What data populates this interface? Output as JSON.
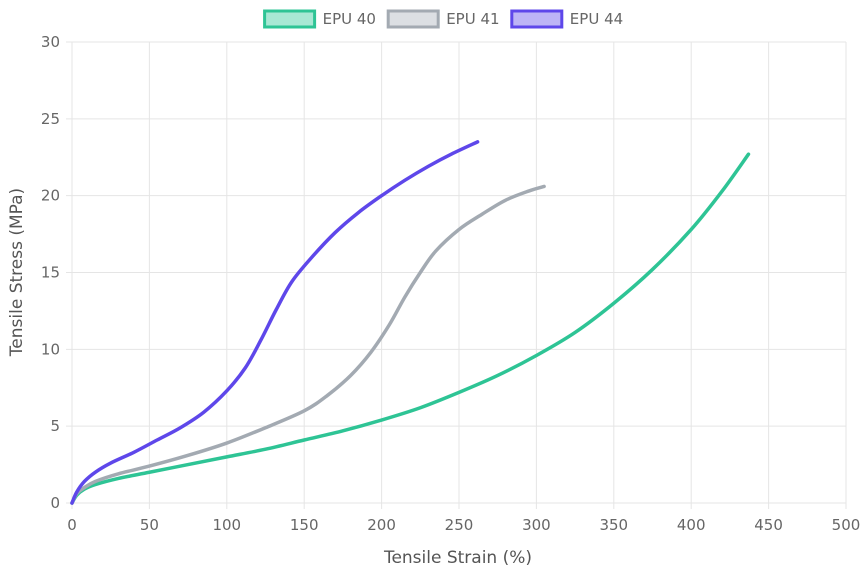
{
  "chart_data": {
    "type": "line",
    "xlabel": "Tensile Strain (%)",
    "ylabel": "Tensile Stress (MPa)",
    "xlim": [
      0,
      500
    ],
    "ylim": [
      0,
      30
    ],
    "x_ticks": [
      0,
      50,
      100,
      150,
      200,
      250,
      300,
      350,
      400,
      450,
      500
    ],
    "y_ticks": [
      0,
      5,
      10,
      15,
      20,
      25,
      30
    ],
    "grid": true,
    "legend_position": "top",
    "series": [
      {
        "name": "EPU 40",
        "color": "#2ec495",
        "fill": "#a8e8d4",
        "points": [
          [
            0,
            0
          ],
          [
            3,
            0.5
          ],
          [
            8,
            0.9
          ],
          [
            15,
            1.2
          ],
          [
            30,
            1.6
          ],
          [
            50,
            2.0
          ],
          [
            75,
            2.5
          ],
          [
            100,
            3.0
          ],
          [
            125,
            3.5
          ],
          [
            150,
            4.1
          ],
          [
            175,
            4.7
          ],
          [
            200,
            5.4
          ],
          [
            225,
            6.2
          ],
          [
            250,
            7.2
          ],
          [
            275,
            8.3
          ],
          [
            300,
            9.6
          ],
          [
            325,
            11.1
          ],
          [
            350,
            13.0
          ],
          [
            375,
            15.2
          ],
          [
            400,
            17.8
          ],
          [
            420,
            20.3
          ],
          [
            437,
            22.7
          ]
        ]
      },
      {
        "name": "EPU 41",
        "color": "#a3aab2",
        "fill": "#dcdfe3",
        "points": [
          [
            0,
            0
          ],
          [
            3,
            0.6
          ],
          [
            8,
            1.0
          ],
          [
            15,
            1.4
          ],
          [
            30,
            1.9
          ],
          [
            50,
            2.4
          ],
          [
            75,
            3.1
          ],
          [
            100,
            3.9
          ],
          [
            125,
            4.9
          ],
          [
            150,
            6.0
          ],
          [
            165,
            7.0
          ],
          [
            180,
            8.3
          ],
          [
            193,
            9.8
          ],
          [
            205,
            11.6
          ],
          [
            215,
            13.4
          ],
          [
            225,
            15.0
          ],
          [
            235,
            16.4
          ],
          [
            250,
            17.8
          ],
          [
            265,
            18.8
          ],
          [
            280,
            19.7
          ],
          [
            295,
            20.3
          ],
          [
            305,
            20.6
          ]
        ]
      },
      {
        "name": "EPU 44",
        "color": "#5e47ea",
        "fill": "#bdb4f6",
        "points": [
          [
            0,
            0
          ],
          [
            3,
            0.7
          ],
          [
            8,
            1.4
          ],
          [
            15,
            2.0
          ],
          [
            25,
            2.6
          ],
          [
            40,
            3.3
          ],
          [
            55,
            4.1
          ],
          [
            70,
            4.9
          ],
          [
            85,
            5.9
          ],
          [
            100,
            7.3
          ],
          [
            112,
            8.8
          ],
          [
            122,
            10.6
          ],
          [
            132,
            12.6
          ],
          [
            142,
            14.4
          ],
          [
            155,
            16.0
          ],
          [
            170,
            17.6
          ],
          [
            185,
            18.9
          ],
          [
            200,
            20.0
          ],
          [
            215,
            21.0
          ],
          [
            230,
            21.9
          ],
          [
            245,
            22.7
          ],
          [
            262,
            23.5
          ]
        ]
      }
    ]
  }
}
